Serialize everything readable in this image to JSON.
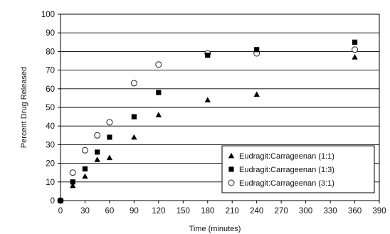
{
  "chart_data": {
    "type": "scatter",
    "title": "",
    "xlabel": "Time (minutes)",
    "ylabel": "Percent Drug Released",
    "xlim": [
      0,
      390
    ],
    "ylim": [
      0,
      100
    ],
    "x_ticks": [
      "0",
      "30",
      "60",
      "90",
      "120",
      "150",
      "180",
      "210",
      "240",
      "270",
      "300",
      "330",
      "360",
      "390"
    ],
    "y_ticks": [
      "0",
      "10",
      "20",
      "30",
      "40",
      "50",
      "60",
      "70",
      "80",
      "90",
      "100"
    ],
    "grid": "horizontal",
    "legend_position": "bottom-right",
    "series": [
      {
        "name": "Eudragit:Carrageenan (1:1)",
        "marker": "filled-triangle",
        "color": "#000000",
        "points": [
          {
            "x": 0,
            "y": 0
          },
          {
            "x": 15,
            "y": 8
          },
          {
            "x": 30,
            "y": 13
          },
          {
            "x": 45,
            "y": 22
          },
          {
            "x": 60,
            "y": 23
          },
          {
            "x": 90,
            "y": 34
          },
          {
            "x": 120,
            "y": 46
          },
          {
            "x": 180,
            "y": 54
          },
          {
            "x": 240,
            "y": 57
          },
          {
            "x": 360,
            "y": 77
          }
        ]
      },
      {
        "name": "Eudragit:Carrageenan (1:3)",
        "marker": "filled-square",
        "color": "#000000",
        "points": [
          {
            "x": 0,
            "y": 0
          },
          {
            "x": 15,
            "y": 10
          },
          {
            "x": 30,
            "y": 17
          },
          {
            "x": 45,
            "y": 26
          },
          {
            "x": 60,
            "y": 34
          },
          {
            "x": 90,
            "y": 45
          },
          {
            "x": 120,
            "y": 58
          },
          {
            "x": 180,
            "y": 78
          },
          {
            "x": 240,
            "y": 81
          },
          {
            "x": 360,
            "y": 85
          }
        ]
      },
      {
        "name": "Eudragit:Carrageenan (3:1)",
        "marker": "open-circle",
        "color": "#000000",
        "points": [
          {
            "x": 0,
            "y": 0
          },
          {
            "x": 15,
            "y": 15
          },
          {
            "x": 30,
            "y": 27
          },
          {
            "x": 45,
            "y": 35
          },
          {
            "x": 60,
            "y": 42
          },
          {
            "x": 90,
            "y": 63
          },
          {
            "x": 120,
            "y": 73
          },
          {
            "x": 180,
            "y": 79
          },
          {
            "x": 240,
            "y": 79
          },
          {
            "x": 360,
            "y": 81
          }
        ]
      }
    ]
  }
}
